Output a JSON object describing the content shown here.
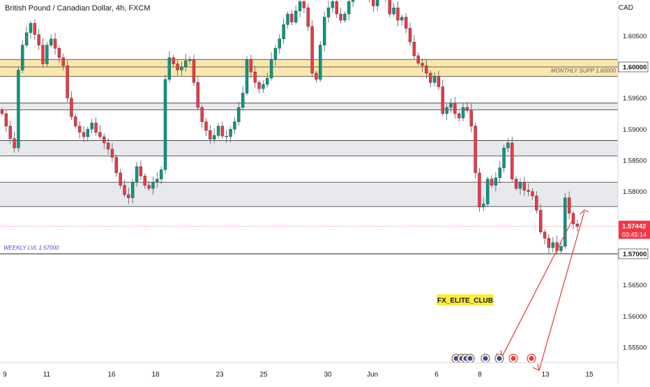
{
  "title": "British Pound / Canadian Dollar, 4h, FXCM",
  "currency": "CAD",
  "colors": {
    "up": "#089981",
    "down": "#f23645",
    "zone_gold": "#f7d46a",
    "zone_grey": "#d1d4dc",
    "arrow": "#e53935",
    "label_yellow": "#ffeb3b",
    "price_badge": "#f23645",
    "weekly_label": "#4a4fd1",
    "monthly_label": "#5d5d5d"
  },
  "chart_data": {
    "type": "candlestick",
    "symbol": "GBPCAD",
    "timeframe": "4h",
    "ylim": [
      1.5525,
      1.6095
    ],
    "x_ticks": [
      "9",
      "11",
      "16",
      "18",
      "23",
      "25",
      "30",
      "Jun",
      "6",
      "8",
      "13",
      "15"
    ],
    "y_ticks": [
      "1.60500",
      "1.60000",
      "1.59500",
      "1.59000",
      "1.58500",
      "1.58000",
      "1.57500",
      "1.57000",
      "1.56500",
      "1.56000",
      "1.55500"
    ],
    "current_price": "1.57442",
    "countdown": "03:45:14",
    "level_badges": [
      "1.60000",
      "1.57000"
    ],
    "annotations": {
      "monthly": "MONTHLY SUPP 1.60000",
      "weekly": "WEEKLY LVL 1.57000",
      "signature": "FX_ELITE_CLUB"
    },
    "zones": [
      {
        "kind": "gold",
        "top": 1.6012,
        "bottom": 1.5985,
        "line": 1.6
      },
      {
        "kind": "grey",
        "top": 1.5942,
        "bottom": 1.5931
      },
      {
        "kind": "grey",
        "top": 1.5882,
        "bottom": 1.5857
      },
      {
        "kind": "grey",
        "top": 1.5815,
        "bottom": 1.5776
      }
    ],
    "levels": [
      1.57
    ],
    "closes": [
      1.5925,
      1.5905,
      1.5885,
      1.587,
      1.5995,
      1.6035,
      1.6055,
      1.607,
      1.6052,
      1.6035,
      1.6005,
      1.6035,
      1.6045,
      1.603,
      1.6015,
      1.6002,
      1.595,
      1.592,
      1.5905,
      1.5895,
      1.5888,
      1.59,
      1.591,
      1.5895,
      1.5888,
      1.5878,
      1.5868,
      1.5855,
      1.583,
      1.581,
      1.5795,
      1.579,
      1.5815,
      1.584,
      1.5825,
      1.581,
      1.5805,
      1.5815,
      1.582,
      1.5835,
      1.598,
      1.6015,
      1.6005,
      1.5995,
      1.6,
      1.601,
      1.6012,
      1.5975,
      1.5935,
      1.5912,
      1.5898,
      1.5884,
      1.589,
      1.5905,
      1.5889,
      1.5888,
      1.59,
      1.5912,
      1.5935,
      1.5958,
      1.6012,
      1.5992,
      1.5975,
      1.5965,
      1.5972,
      1.5982,
      1.6012,
      1.603,
      1.6045,
      1.6068,
      1.6085,
      1.6072,
      1.609,
      1.6105,
      1.6095,
      1.6065,
      1.599,
      1.598,
      1.6035,
      1.608,
      1.6095,
      1.6105,
      1.6085,
      1.6075,
      1.6085,
      1.6105,
      1.612,
      1.6135,
      1.614,
      1.6125,
      1.6108,
      1.6098,
      1.6115,
      1.6125,
      1.611,
      1.6085,
      1.6095,
      1.6075,
      1.608,
      1.6062,
      1.604,
      1.6018,
      1.6006,
      1.6002,
      1.599,
      1.5975,
      1.5985,
      1.5968,
      1.5925,
      1.5935,
      1.5942,
      1.5925,
      1.5918,
      1.5935,
      1.593,
      1.5905,
      1.583,
      1.5775,
      1.578,
      1.582,
      1.581,
      1.5822,
      1.5838,
      1.587,
      1.5878,
      1.582,
      1.5805,
      1.5815,
      1.5802,
      1.58,
      1.5793,
      1.577,
      1.5735,
      1.5725,
      1.571,
      1.5718,
      1.5705,
      1.5712,
      1.579,
      1.5765,
      1.5748,
      1.5744
    ],
    "projection": {
      "from": 1.5768,
      "lows": [
        1.5535,
        1.5513
      ]
    },
    "calendar_events": [
      "GBP",
      "GBP",
      "GBP",
      "GBP",
      "GBP",
      "GBP",
      "CAD",
      "CAD"
    ]
  }
}
